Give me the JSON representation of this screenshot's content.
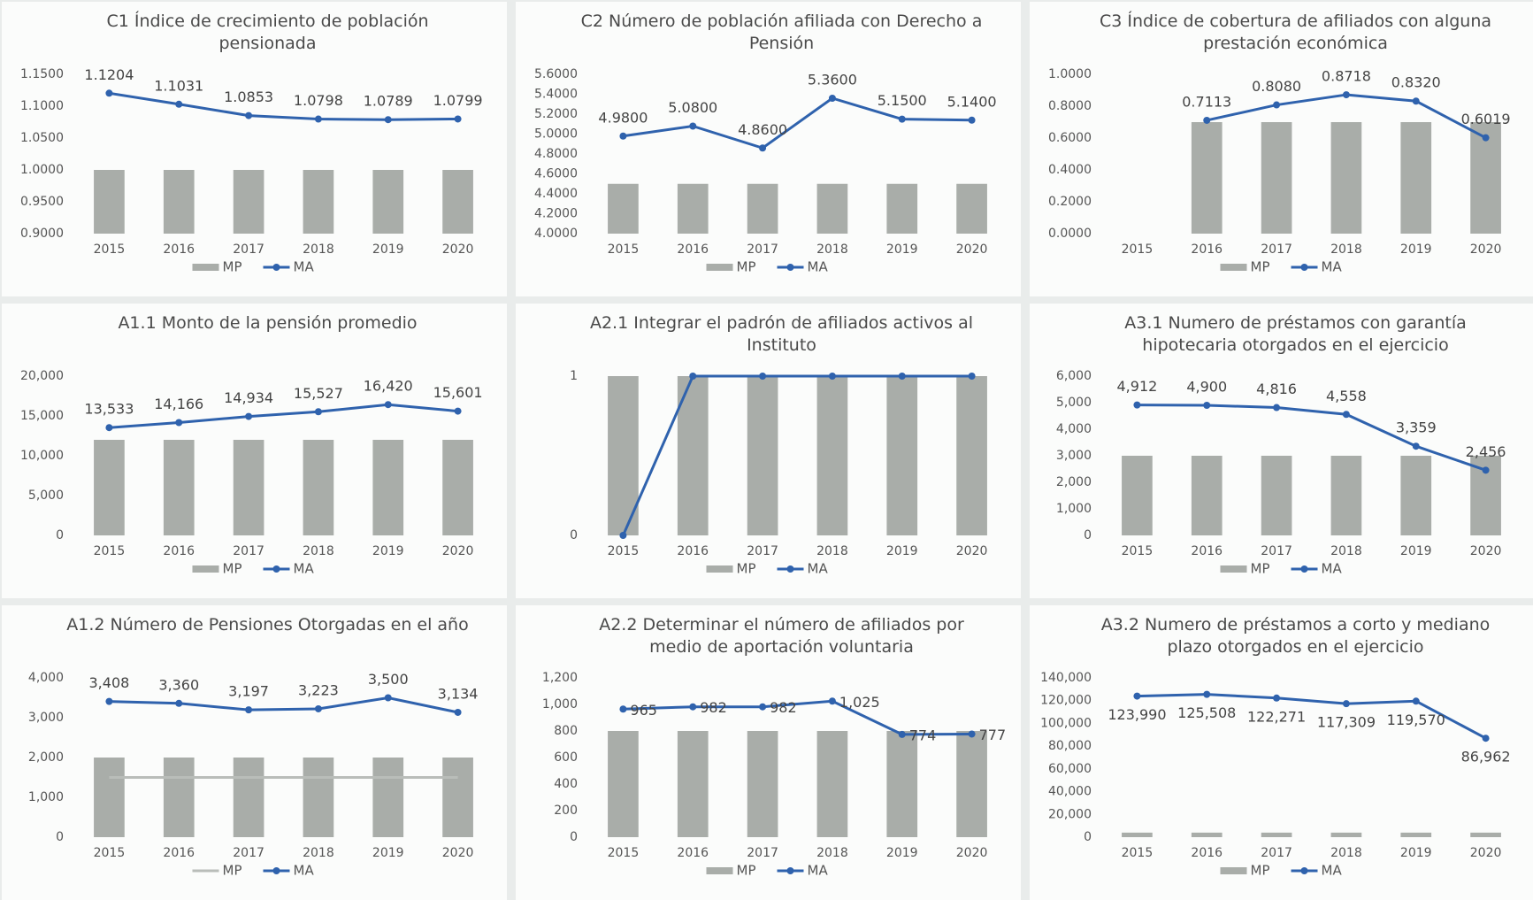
{
  "chart_data": [
    {
      "type": "combo",
      "title": "C1 Índice de crecimiento de población pensionada",
      "categories": [
        "2015",
        "2016",
        "2017",
        "2018",
        "2019",
        "2020"
      ],
      "series": [
        {
          "name": "MP",
          "style": "bar",
          "color": "#a9ada9",
          "values": [
            1.0,
            1.0,
            1.0,
            1.0,
            1.0,
            1.0
          ]
        },
        {
          "name": "MA",
          "style": "line",
          "color": "#2f62ad",
          "values": [
            1.1204,
            1.1031,
            1.0853,
            1.0798,
            1.0789,
            1.0799
          ]
        }
      ],
      "ylim": [
        0.9,
        1.15
      ],
      "yticks": [
        {
          "value": 0.9,
          "label": "0.9000"
        },
        {
          "value": 0.95,
          "label": "0.9500"
        },
        {
          "value": 1.0,
          "label": "1.0000"
        },
        {
          "value": 1.05,
          "label": "1.0500"
        },
        {
          "value": 1.1,
          "label": "1.1000"
        },
        {
          "value": 1.15,
          "label": "1.1500"
        }
      ],
      "data_label_position": "above",
      "grid": false
    },
    {
      "type": "combo",
      "title": "C2 Número de población afiliada con Derecho a Pensión",
      "categories": [
        "2015",
        "2016",
        "2017",
        "2018",
        "2019",
        "2020"
      ],
      "series": [
        {
          "name": "MP",
          "style": "bar",
          "color": "#a9ada9",
          "values": [
            4.5,
            4.5,
            4.5,
            4.5,
            4.5,
            4.5
          ]
        },
        {
          "name": "MA",
          "style": "line",
          "color": "#2f62ad",
          "values": [
            4.98,
            5.08,
            4.86,
            5.36,
            5.15,
            5.14
          ],
          "value_labels": [
            "4.9800",
            "5.0800",
            "4.8600",
            "5.3600",
            "5.1500",
            "5.1400"
          ]
        }
      ],
      "ylim": [
        4.0,
        5.6
      ],
      "yticks": [
        {
          "value": 4.0,
          "label": "4.0000"
        },
        {
          "value": 4.2,
          "label": "4.2000"
        },
        {
          "value": 4.4,
          "label": "4.4000"
        },
        {
          "value": 4.6,
          "label": "4.6000"
        },
        {
          "value": 4.8,
          "label": "4.8000"
        },
        {
          "value": 5.0,
          "label": "5.0000"
        },
        {
          "value": 5.2,
          "label": "5.2000"
        },
        {
          "value": 5.4,
          "label": "5.4000"
        },
        {
          "value": 5.6,
          "label": "5.6000"
        }
      ],
      "data_label_position": "above",
      "grid": false
    },
    {
      "type": "combo",
      "title": "C3 Índice de cobertura de afiliados con alguna prestación económica",
      "categories": [
        "2015",
        "2016",
        "2017",
        "2018",
        "2019",
        "2020"
      ],
      "series": [
        {
          "name": "MP",
          "style": "bar",
          "color": "#a9ada9",
          "values": [
            null,
            0.7,
            0.7,
            0.7,
            0.7,
            0.7
          ]
        },
        {
          "name": "MA",
          "style": "line",
          "color": "#2f62ad",
          "values": [
            null,
            0.7113,
            0.808,
            0.8718,
            0.832,
            0.6019
          ],
          "value_labels": [
            null,
            "0.7113",
            "0.8080",
            "0.8718",
            "0.8320",
            "0.6019"
          ]
        }
      ],
      "ylim": [
        0.0,
        1.0
      ],
      "yticks": [
        {
          "value": 0.0,
          "label": "0.0000"
        },
        {
          "value": 0.2,
          "label": "0.2000"
        },
        {
          "value": 0.4,
          "label": "0.4000"
        },
        {
          "value": 0.6,
          "label": "0.6000"
        },
        {
          "value": 0.8,
          "label": "0.8000"
        },
        {
          "value": 1.0,
          "label": "1.0000"
        }
      ],
      "data_label_position": "above",
      "grid": false
    },
    {
      "type": "combo",
      "title": "A1.1 Monto de la pensión promedio",
      "categories": [
        "2015",
        "2016",
        "2017",
        "2018",
        "2019",
        "2020"
      ],
      "series": [
        {
          "name": "MP",
          "style": "bar",
          "color": "#a9ada9",
          "values": [
            12000,
            12000,
            12000,
            12000,
            12000,
            12000
          ]
        },
        {
          "name": "MA",
          "style": "line",
          "color": "#2f62ad",
          "values": [
            13533,
            14166,
            14934,
            15527,
            16420,
            15601
          ],
          "value_labels": [
            "13,533",
            "14,166",
            "14,934",
            "15,527",
            "16,420",
            "15,601"
          ]
        }
      ],
      "ylim": [
        0,
        20000
      ],
      "yticks": [
        0,
        {
          "value": 5000,
          "label": "5,000"
        },
        {
          "value": 10000,
          "label": "10,000"
        },
        {
          "value": 15000,
          "label": "15,000"
        },
        {
          "value": 20000,
          "label": "20,000"
        }
      ],
      "data_label_position": "above",
      "grid": false
    },
    {
      "type": "combo",
      "title": "A2.1 Integrar el padrón de afiliados activos al Instituto",
      "categories": [
        "2015",
        "2016",
        "2017",
        "2018",
        "2019",
        "2020"
      ],
      "series": [
        {
          "name": "MP",
          "style": "bar",
          "color": "#a9ada9",
          "values": [
            1,
            1,
            1,
            1,
            1,
            1
          ]
        },
        {
          "name": "MA",
          "style": "line",
          "color": "#2f62ad",
          "values": [
            0,
            1,
            1,
            1,
            1,
            1
          ],
          "show_labels": false
        }
      ],
      "ylim": [
        0,
        1
      ],
      "yticks": [
        0,
        1
      ],
      "data_label_position": "above",
      "grid": false
    },
    {
      "type": "combo",
      "title": "A3.1 Numero de préstamos con garantía hipotecaria otorgados en el ejercicio",
      "categories": [
        "2015",
        "2016",
        "2017",
        "2018",
        "2019",
        "2020"
      ],
      "series": [
        {
          "name": "MP",
          "style": "bar",
          "color": "#a9ada9",
          "values": [
            3000,
            3000,
            3000,
            3000,
            3000,
            3000
          ]
        },
        {
          "name": "MA",
          "style": "line",
          "color": "#2f62ad",
          "values": [
            4912,
            4900,
            4816,
            4558,
            3359,
            2456
          ],
          "value_labels": [
            "4,912",
            "4,900",
            "4,816",
            "4,558",
            "3,359",
            "2,456"
          ]
        }
      ],
      "ylim": [
        0,
        6000
      ],
      "yticks": [
        0,
        {
          "value": 1000,
          "label": "1,000"
        },
        {
          "value": 2000,
          "label": "2,000"
        },
        {
          "value": 3000,
          "label": "3,000"
        },
        {
          "value": 4000,
          "label": "4,000"
        },
        {
          "value": 5000,
          "label": "5,000"
        },
        {
          "value": 6000,
          "label": "6,000"
        }
      ],
      "data_label_position": "above",
      "grid": false
    },
    {
      "type": "combo",
      "title": "A1.2 Número de Pensiones Otorgadas en el año",
      "categories": [
        "2015",
        "2016",
        "2017",
        "2018",
        "2019",
        "2020"
      ],
      "series": [
        {
          "style": "bar",
          "color": "#a9ada9",
          "values": [
            2000,
            2000,
            2000,
            2000,
            2000,
            2000
          ]
        },
        {
          "name": "MP",
          "style": "line",
          "color": "#b9bdb9",
          "values": [
            1500,
            1500,
            1500,
            1500,
            1500,
            1500
          ],
          "show_labels": false,
          "markers": false
        },
        {
          "name": "MA",
          "style": "line",
          "color": "#2f62ad",
          "values": [
            3408,
            3360,
            3197,
            3223,
            3500,
            3134
          ],
          "value_labels": [
            "3,408",
            "3,360",
            "3,197",
            "3,223",
            "3,500",
            "3,134"
          ]
        }
      ],
      "ylim": [
        0,
        4000
      ],
      "yticks": [
        0,
        {
          "value": 1000,
          "label": "1,000"
        },
        {
          "value": 2000,
          "label": "2,000"
        },
        {
          "value": 3000,
          "label": "3,000"
        },
        {
          "value": 4000,
          "label": "4,000"
        }
      ],
      "data_label_position": "above",
      "grid": false
    },
    {
      "type": "combo",
      "title": "A2.2 Determinar el número de afiliados por medio de aportación voluntaria",
      "categories": [
        "2015",
        "2016",
        "2017",
        "2018",
        "2019",
        "2020"
      ],
      "series": [
        {
          "name": "MP",
          "style": "bar",
          "color": "#a9ada9",
          "values": [
            800,
            800,
            800,
            800,
            800,
            800
          ]
        },
        {
          "name": "MA",
          "style": "line",
          "color": "#2f62ad",
          "values": [
            965,
            982,
            982,
            1025,
            774,
            777
          ],
          "value_labels": [
            "965",
            "982",
            "982",
            "1,025",
            "774",
            "777"
          ]
        }
      ],
      "ylim": [
        0,
        1200
      ],
      "yticks": [
        0,
        200,
        400,
        600,
        800,
        {
          "value": 1000,
          "label": "1,000"
        },
        {
          "value": 1200,
          "label": "1,200"
        }
      ],
      "data_label_position": "right",
      "grid": false
    },
    {
      "type": "combo",
      "title": "A3.2 Numero de préstamos a corto y mediano plazo otorgados en el ejercicio",
      "categories": [
        "2015",
        "2016",
        "2017",
        "2018",
        "2019",
        "2020"
      ],
      "series": [
        {
          "name": "MP",
          "style": "bar",
          "color": "#a9ada9",
          "values": [
            4000,
            4000,
            4000,
            4000,
            4000,
            4000
          ]
        },
        {
          "name": "MA",
          "style": "line",
          "color": "#2f62ad",
          "values": [
            123990,
            125508,
            122271,
            117309,
            119570,
            86962
          ],
          "value_labels": [
            "123,990",
            "125,508",
            "122,271",
            "117,309",
            "119,570",
            "86,962"
          ]
        }
      ],
      "ylim": [
        0,
        140000
      ],
      "yticks": [
        0,
        {
          "value": 20000,
          "label": "20,000"
        },
        {
          "value": 40000,
          "label": "40,000"
        },
        {
          "value": 60000,
          "label": "60,000"
        },
        {
          "value": 80000,
          "label": "80,000"
        },
        {
          "value": 100000,
          "label": "100,000"
        },
        {
          "value": 120000,
          "label": "120,000"
        },
        {
          "value": 140000,
          "label": "140,000"
        }
      ],
      "data_label_position": "below",
      "grid": false
    }
  ]
}
